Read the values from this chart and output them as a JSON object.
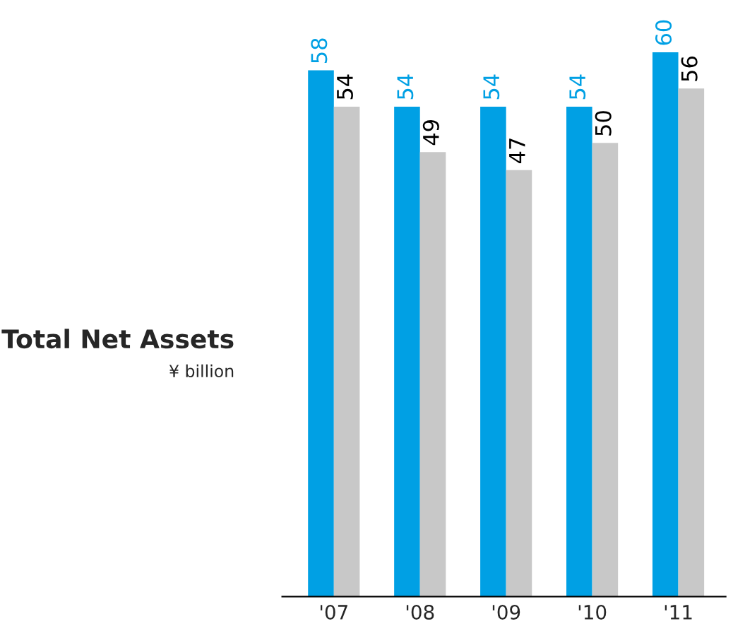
{
  "chart_data": {
    "type": "bar",
    "title": "Total Net Assets",
    "subtitle": "¥ billion",
    "categories": [
      "'07",
      "'08",
      "'09",
      "'10",
      "'11"
    ],
    "series": [
      {
        "color": "#00a0e4",
        "values": [
          58,
          54,
          54,
          54,
          60
        ]
      },
      {
        "color": "#c8c8c8",
        "values": [
          54,
          49,
          47,
          50,
          56
        ]
      }
    ],
    "data_labels": true,
    "grid": false,
    "legend": false
  }
}
